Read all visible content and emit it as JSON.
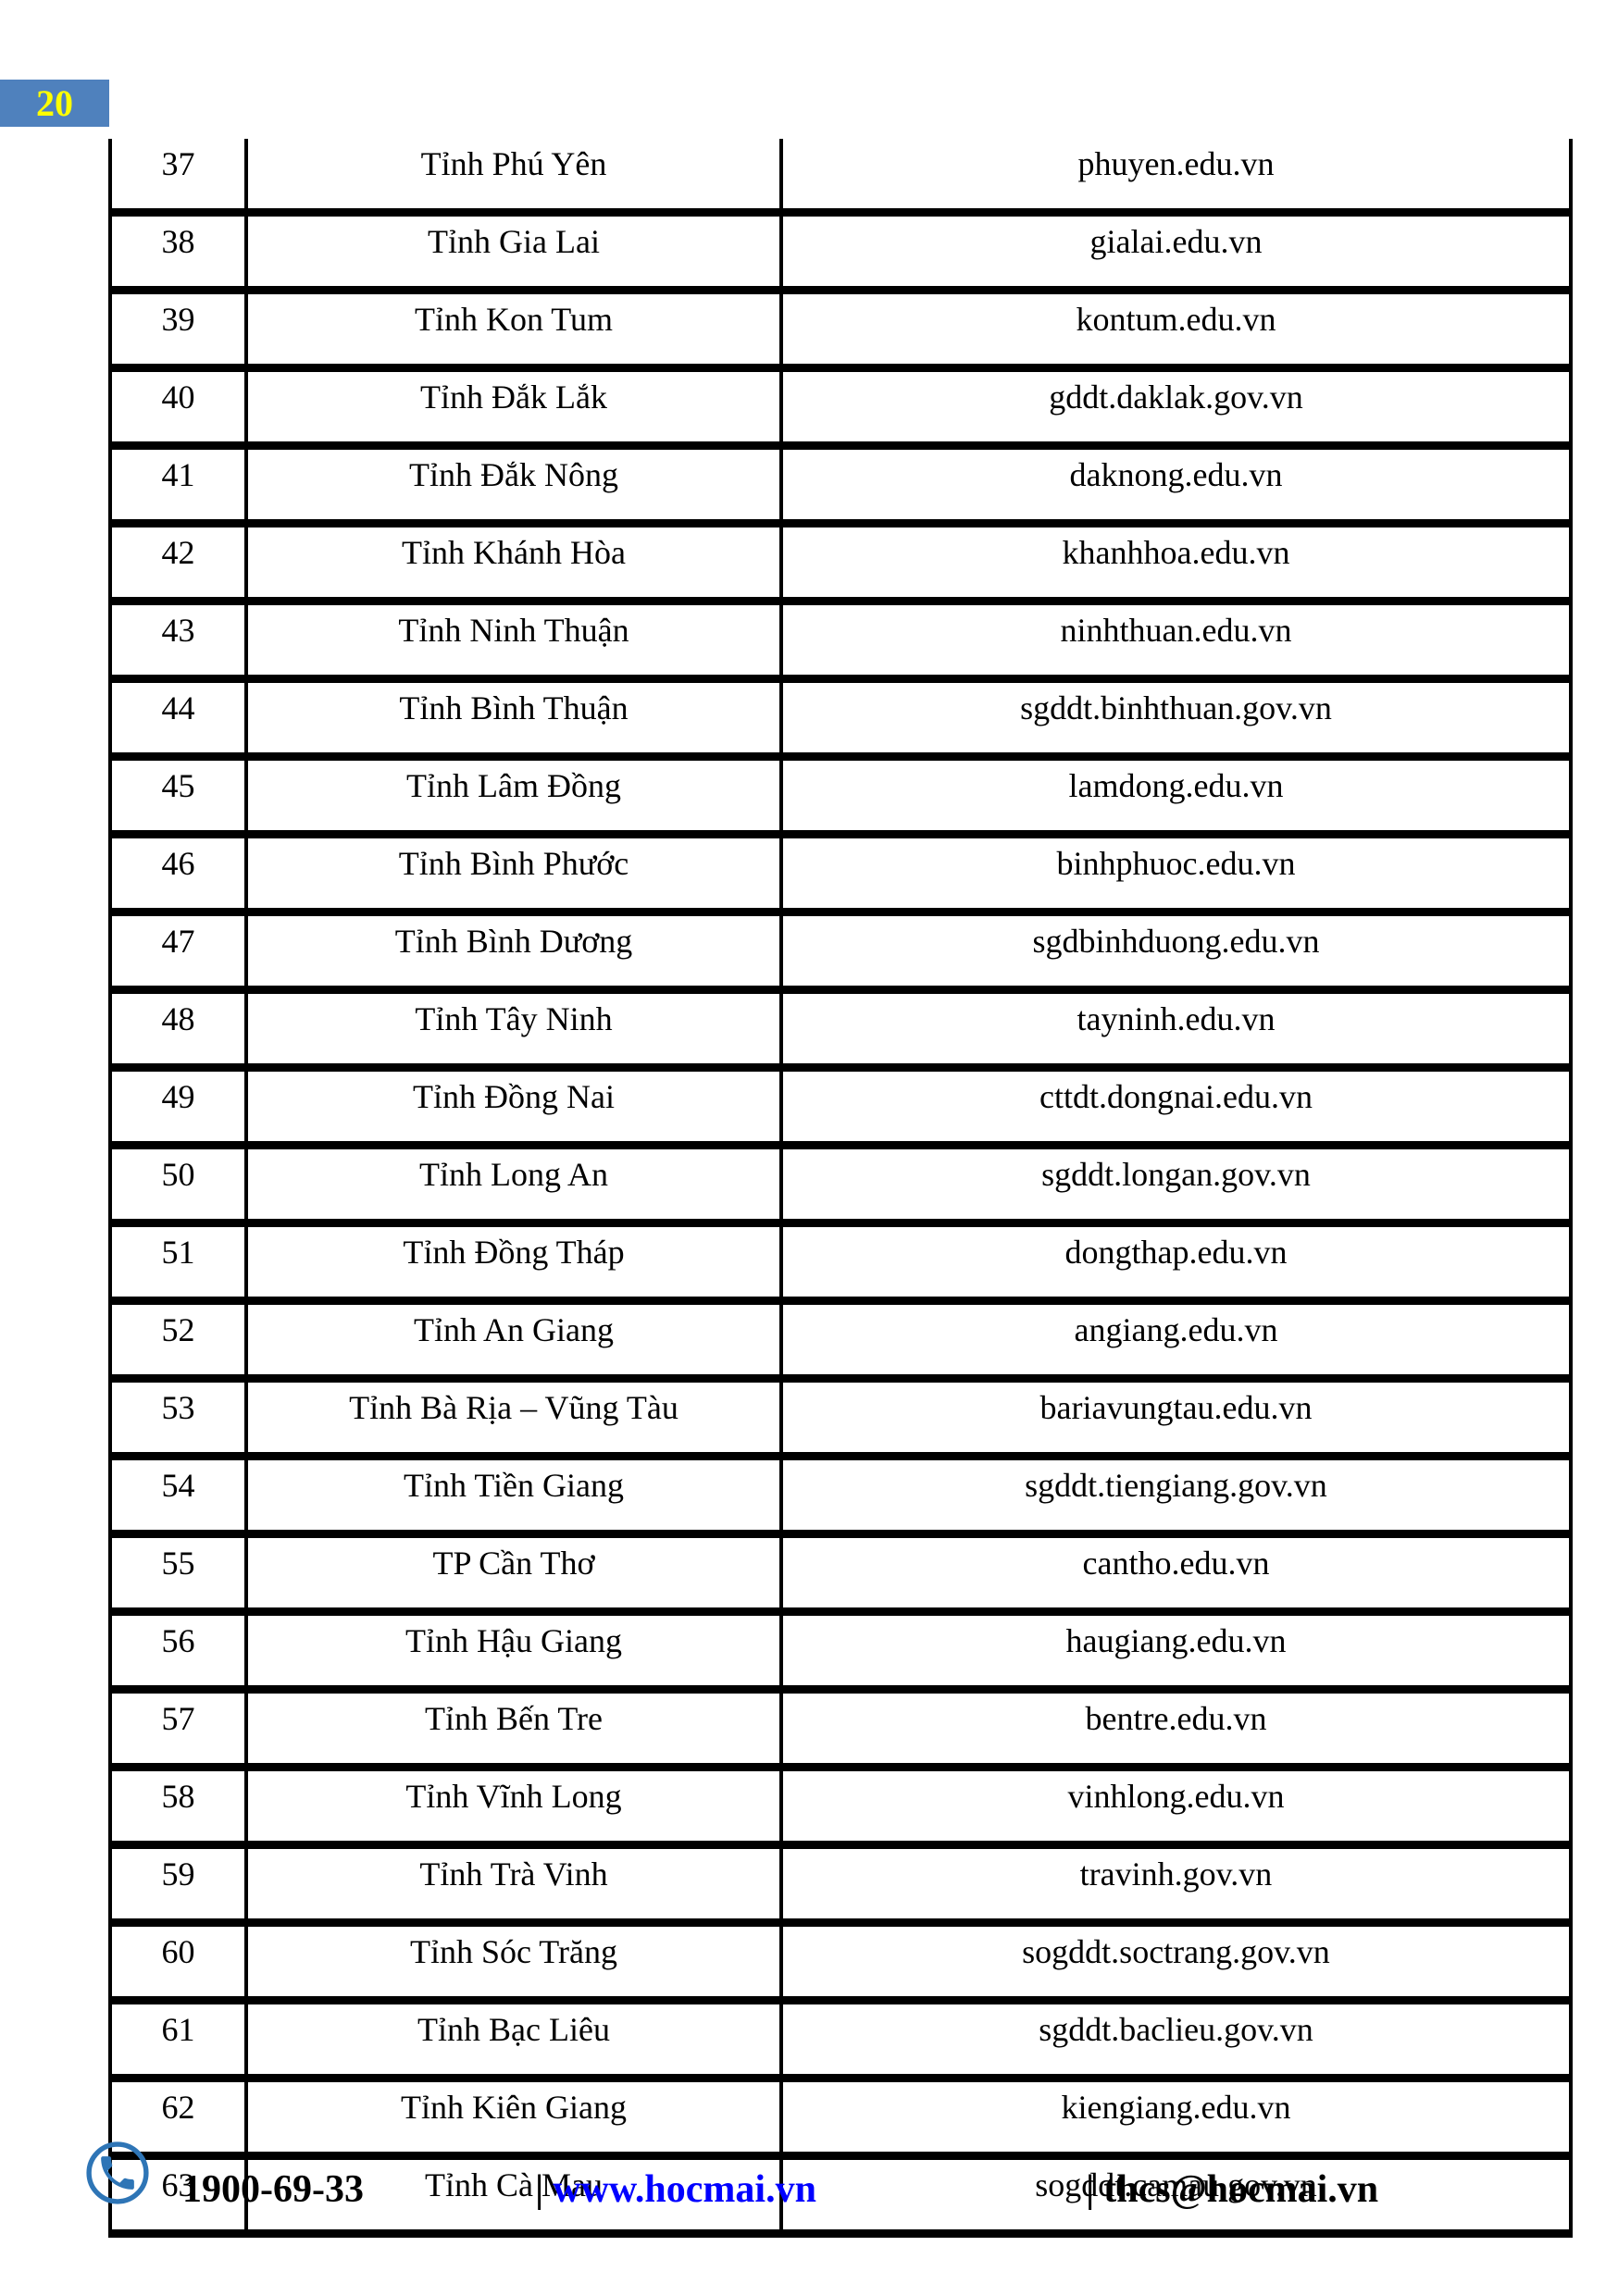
{
  "page": {
    "number": "20"
  },
  "colors": {
    "badge_bg": "#4F81BD",
    "badge_text": "#FFFF00",
    "link": "#0000FF",
    "phone_icon": "#2E75B6"
  },
  "table": {
    "rows": [
      {
        "no": "37",
        "province": "Tỉnh Phú Yên",
        "website": "phuyen.edu.vn"
      },
      {
        "no": "38",
        "province": "Tỉnh Gia Lai",
        "website": "gialai.edu.vn"
      },
      {
        "no": "39",
        "province": "Tỉnh Kon Tum",
        "website": "kontum.edu.vn"
      },
      {
        "no": "40",
        "province": "Tỉnh Đắk Lắk",
        "website": "gddt.daklak.gov.vn"
      },
      {
        "no": "41",
        "province": "Tỉnh Đắk Nông",
        "website": "daknong.edu.vn"
      },
      {
        "no": "42",
        "province": "Tỉnh Khánh Hòa",
        "website": "khanhhoa.edu.vn"
      },
      {
        "no": "43",
        "province": "Tỉnh Ninh Thuận",
        "website": "ninhthuan.edu.vn"
      },
      {
        "no": "44",
        "province": "Tỉnh Bình Thuận",
        "website": "sgddt.binhthuan.gov.vn"
      },
      {
        "no": "45",
        "province": "Tỉnh Lâm Đồng",
        "website": "lamdong.edu.vn"
      },
      {
        "no": "46",
        "province": "Tỉnh Bình Phước",
        "website": "binhphuoc.edu.vn"
      },
      {
        "no": "47",
        "province": "Tỉnh Bình Dương",
        "website": "sgdbinhduong.edu.vn"
      },
      {
        "no": "48",
        "province": "Tỉnh Tây Ninh",
        "website": "tayninh.edu.vn"
      },
      {
        "no": "49",
        "province": "Tỉnh Đồng Nai",
        "website": "cttdt.dongnai.edu.vn"
      },
      {
        "no": "50",
        "province": "Tỉnh Long An",
        "website": "sgddt.longan.gov.vn"
      },
      {
        "no": "51",
        "province": "Tỉnh Đồng Tháp",
        "website": "dongthap.edu.vn"
      },
      {
        "no": "52",
        "province": "Tỉnh An Giang",
        "website": "angiang.edu.vn"
      },
      {
        "no": "53",
        "province": "Tỉnh Bà Rịa – Vũng Tàu",
        "website": "bariavungtau.edu.vn"
      },
      {
        "no": "54",
        "province": "Tỉnh Tiền Giang",
        "website": "sgddt.tiengiang.gov.vn"
      },
      {
        "no": "55",
        "province": "TP Cần Thơ",
        "website": "cantho.edu.vn"
      },
      {
        "no": "56",
        "province": "Tỉnh Hậu Giang",
        "website": "haugiang.edu.vn"
      },
      {
        "no": "57",
        "province": "Tỉnh Bến Tre",
        "website": "bentre.edu.vn"
      },
      {
        "no": "58",
        "province": "Tỉnh Vĩnh Long",
        "website": "vinhlong.edu.vn"
      },
      {
        "no": "59",
        "province": "Tỉnh Trà Vinh",
        "website": "travinh.gov.vn"
      },
      {
        "no": "60",
        "province": "Tỉnh Sóc Trăng",
        "website": "sogddt.soctrang.gov.vn"
      },
      {
        "no": "61",
        "province": "Tỉnh Bạc Liêu",
        "website": "sgddt.baclieu.gov.vn"
      },
      {
        "no": "62",
        "province": "Tỉnh Kiên Giang",
        "website": "kiengiang.edu.vn"
      },
      {
        "no": "63",
        "province": "Tỉnh Cà Mau",
        "website": "sogddt.camau.gov.vn"
      }
    ]
  },
  "footer": {
    "phone": "1900-69-33",
    "separator": "|",
    "website": "www.hocmai.vn",
    "email": "thcs@hocmai.vn"
  }
}
